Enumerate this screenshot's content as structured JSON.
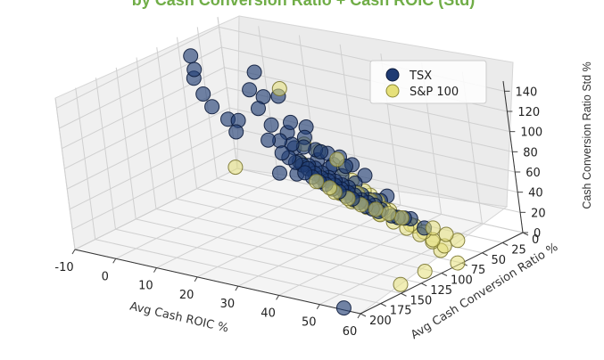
{
  "caption": "by Cash Conversion Ratio + Cash ROIC (Std)",
  "chart_data": {
    "type": "scatter3d",
    "x_axis": {
      "label": "Avg Cash ROIC %",
      "ticks": [
        -10,
        0,
        10,
        20,
        30,
        40,
        50,
        60
      ],
      "range": [
        -10,
        60
      ]
    },
    "y_axis": {
      "label": "Avg Cash Conversion Ratio %",
      "ticks": [
        0,
        25,
        50,
        75,
        100,
        125,
        150,
        175,
        200
      ],
      "range": [
        0,
        200
      ]
    },
    "z_axis": {
      "label": "Cash Conversion Ratio Std %",
      "ticks": [
        0,
        20,
        40,
        60,
        80,
        100,
        120,
        140
      ],
      "range": [
        0,
        150
      ]
    },
    "grid": true,
    "legend": {
      "placement": "top-right"
    },
    "colors": {
      "TSX": "#1f3b73",
      "S&P 100": "#e6e07a"
    },
    "series": [
      {
        "name": "TSX",
        "points": [
          [
            -5,
            60,
            140
          ],
          [
            2,
            90,
            145
          ],
          [
            6,
            110,
            148
          ],
          [
            10,
            120,
            140
          ],
          [
            14,
            130,
            135
          ],
          [
            22,
            150,
            138
          ],
          [
            4,
            30,
            120
          ],
          [
            12,
            60,
            115
          ],
          [
            18,
            70,
            125
          ],
          [
            30,
            120,
            120
          ],
          [
            40,
            160,
            130
          ],
          [
            42,
            170,
            110
          ],
          [
            0,
            20,
            95
          ],
          [
            6,
            40,
            90
          ],
          [
            12,
            55,
            85
          ],
          [
            18,
            60,
            95
          ],
          [
            24,
            70,
            100
          ],
          [
            20,
            55,
            80
          ],
          [
            28,
            80,
            75
          ],
          [
            34,
            90,
            80
          ],
          [
            -6,
            10,
            55
          ],
          [
            -8,
            5,
            40
          ],
          [
            2,
            15,
            45
          ],
          [
            6,
            20,
            50
          ],
          [
            10,
            25,
            52
          ],
          [
            14,
            30,
            55
          ],
          [
            18,
            35,
            58
          ],
          [
            22,
            40,
            60
          ],
          [
            26,
            45,
            62
          ],
          [
            30,
            50,
            60
          ],
          [
            34,
            55,
            55
          ],
          [
            16,
            20,
            48
          ],
          [
            24,
            30,
            45
          ],
          [
            4,
            10,
            32
          ],
          [
            6,
            12,
            30
          ],
          [
            8,
            14,
            28
          ],
          [
            10,
            16,
            28
          ],
          [
            12,
            18,
            30
          ],
          [
            14,
            20,
            30
          ],
          [
            16,
            22,
            28
          ],
          [
            18,
            24,
            26
          ],
          [
            20,
            26,
            25
          ],
          [
            22,
            28,
            24
          ],
          [
            24,
            30,
            24
          ],
          [
            26,
            32,
            22
          ],
          [
            28,
            34,
            22
          ],
          [
            30,
            36,
            20
          ],
          [
            32,
            38,
            22
          ],
          [
            10,
            10,
            22
          ],
          [
            12,
            12,
            20
          ],
          [
            14,
            14,
            18
          ],
          [
            16,
            16,
            18
          ],
          [
            18,
            18,
            16
          ],
          [
            20,
            20,
            15
          ],
          [
            22,
            22,
            14
          ],
          [
            24,
            24,
            14
          ],
          [
            26,
            26,
            12
          ],
          [
            28,
            28,
            12
          ],
          [
            30,
            30,
            12
          ],
          [
            32,
            32,
            10
          ],
          [
            8,
            5,
            14
          ],
          [
            10,
            6,
            12
          ],
          [
            12,
            8,
            10
          ],
          [
            14,
            10,
            10
          ],
          [
            16,
            12,
            8
          ],
          [
            18,
            14,
            8
          ],
          [
            20,
            16,
            6
          ],
          [
            22,
            18,
            6
          ],
          [
            24,
            20,
            5
          ],
          [
            26,
            22,
            4
          ],
          [
            28,
            24,
            4
          ],
          [
            30,
            26,
            4
          ],
          [
            34,
            30,
            5
          ],
          [
            36,
            32,
            6
          ],
          [
            38,
            34,
            8
          ],
          [
            40,
            36,
            10
          ],
          [
            20,
            30,
            40
          ],
          [
            24,
            36,
            38
          ],
          [
            28,
            40,
            36
          ],
          [
            12,
            28,
            38
          ],
          [
            56,
            200,
            2
          ],
          [
            44,
            40,
            6
          ],
          [
            6,
            25,
            20
          ],
          [
            36,
            50,
            30
          ],
          [
            40,
            60,
            42
          ]
        ]
      },
      {
        "name": "S&P 100",
        "points": [
          [
            -10,
            2,
            2
          ],
          [
            12,
            40,
            115
          ],
          [
            36,
            130,
            118
          ],
          [
            46,
            160,
            132
          ],
          [
            50,
            200,
            140
          ],
          [
            22,
            30,
            50
          ],
          [
            30,
            60,
            60
          ],
          [
            36,
            80,
            62
          ],
          [
            42,
            100,
            55
          ],
          [
            38,
            70,
            45
          ],
          [
            44,
            90,
            40
          ],
          [
            30,
            40,
            30
          ],
          [
            34,
            44,
            25
          ],
          [
            38,
            50,
            22
          ],
          [
            42,
            55,
            20
          ],
          [
            46,
            60,
            18
          ],
          [
            26,
            30,
            20
          ],
          [
            30,
            34,
            18
          ],
          [
            34,
            38,
            15
          ],
          [
            38,
            42,
            12
          ],
          [
            42,
            46,
            10
          ],
          [
            46,
            50,
            8
          ],
          [
            50,
            60,
            6
          ],
          [
            54,
            70,
            5
          ],
          [
            20,
            22,
            12
          ],
          [
            24,
            26,
            10
          ],
          [
            28,
            30,
            8
          ],
          [
            32,
            34,
            6
          ],
          [
            36,
            38,
            4
          ],
          [
            40,
            42,
            3
          ],
          [
            44,
            46,
            2
          ],
          [
            48,
            50,
            2
          ],
          [
            52,
            56,
            2
          ],
          [
            16,
            10,
            4
          ],
          [
            20,
            14,
            3
          ],
          [
            24,
            18,
            2
          ],
          [
            28,
            20,
            2
          ],
          [
            32,
            24,
            3
          ],
          [
            36,
            28,
            4
          ],
          [
            60,
            80,
            2
          ],
          [
            58,
            140,
            3
          ],
          [
            58,
            110,
            4
          ],
          [
            10,
            2,
            6
          ],
          [
            14,
            6,
            5
          ],
          [
            44,
            30,
            2
          ],
          [
            48,
            34,
            1
          ],
          [
            52,
            40,
            1
          ],
          [
            26,
            50,
            28
          ],
          [
            30,
            56,
            26
          ]
        ]
      }
    ]
  }
}
